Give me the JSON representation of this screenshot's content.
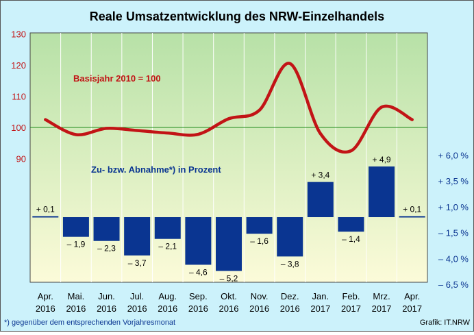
{
  "colors": {
    "frame_bg": "#ccf2fb",
    "plot_top": "#b7e1a7",
    "plot_bottom": "#fcfbd9",
    "line": "#c21416",
    "bar": "#0a3591",
    "baseline": "#1e8a1a",
    "left_axis_text": "#c21416",
    "right_axis_text": "#0a3591"
  },
  "footnote": "*) gegenüber dem entsprechenden Vorjahresmonat",
  "source": "Grafik: IT.NRW",
  "chart_data": {
    "type": "line+bar",
    "title": "Reale Umsatzentwicklung des NRW-Einzelhandels",
    "categories": [
      [
        "Apr.",
        "2016"
      ],
      [
        "Mai.",
        "2016"
      ],
      [
        "Jun.",
        "2016"
      ],
      [
        "Jul.",
        "2016"
      ],
      [
        "Aug.",
        "2016"
      ],
      [
        "Sep.",
        "2016"
      ],
      [
        "Okt.",
        "2016"
      ],
      [
        "Nov.",
        "2016"
      ],
      [
        "Dez.",
        "2016"
      ],
      [
        "Jan.",
        "2017"
      ],
      [
        "Feb.",
        "2017"
      ],
      [
        "Mrz.",
        "2017"
      ],
      [
        "Apr.",
        "2017"
      ]
    ],
    "index_series": {
      "label": "Basisjahr 2010 = 100",
      "values": [
        102.5,
        97.7,
        99.7,
        99.0,
        98.2,
        97.8,
        102.8,
        105.5,
        120.5,
        98.0,
        92.5,
        106.5,
        102.5
      ]
    },
    "change_series": {
      "label": "Zu- bzw. Abnahme*) in Prozent",
      "values": [
        0.1,
        -1.9,
        -2.3,
        -3.7,
        -2.1,
        -4.6,
        -5.2,
        -1.6,
        -3.8,
        3.4,
        -1.4,
        4.9,
        0.1
      ],
      "data_labels": [
        "+ 0,1",
        "– 1,9",
        "– 2,3",
        "– 3,7",
        "– 2,1",
        "– 4,6",
        "– 5,2",
        "– 1,6",
        "– 3,8",
        "+ 3,4",
        "– 1,4",
        "+ 4,9",
        "+ 0,1"
      ]
    },
    "left_axis": {
      "ticks": [
        "130",
        "120",
        "110",
        "100",
        "90"
      ],
      "values": [
        130,
        120,
        110,
        100,
        90
      ]
    },
    "right_axis": {
      "ticks": [
        "+ 6,0 %",
        "+ 3,5 %",
        "+ 1,0 %",
        "– 1,5 %",
        "– 4,0 %",
        "– 6,5 %"
      ],
      "values": [
        6.0,
        3.5,
        1.0,
        -1.5,
        -4.0,
        -6.5
      ]
    },
    "reference_line": 100
  }
}
